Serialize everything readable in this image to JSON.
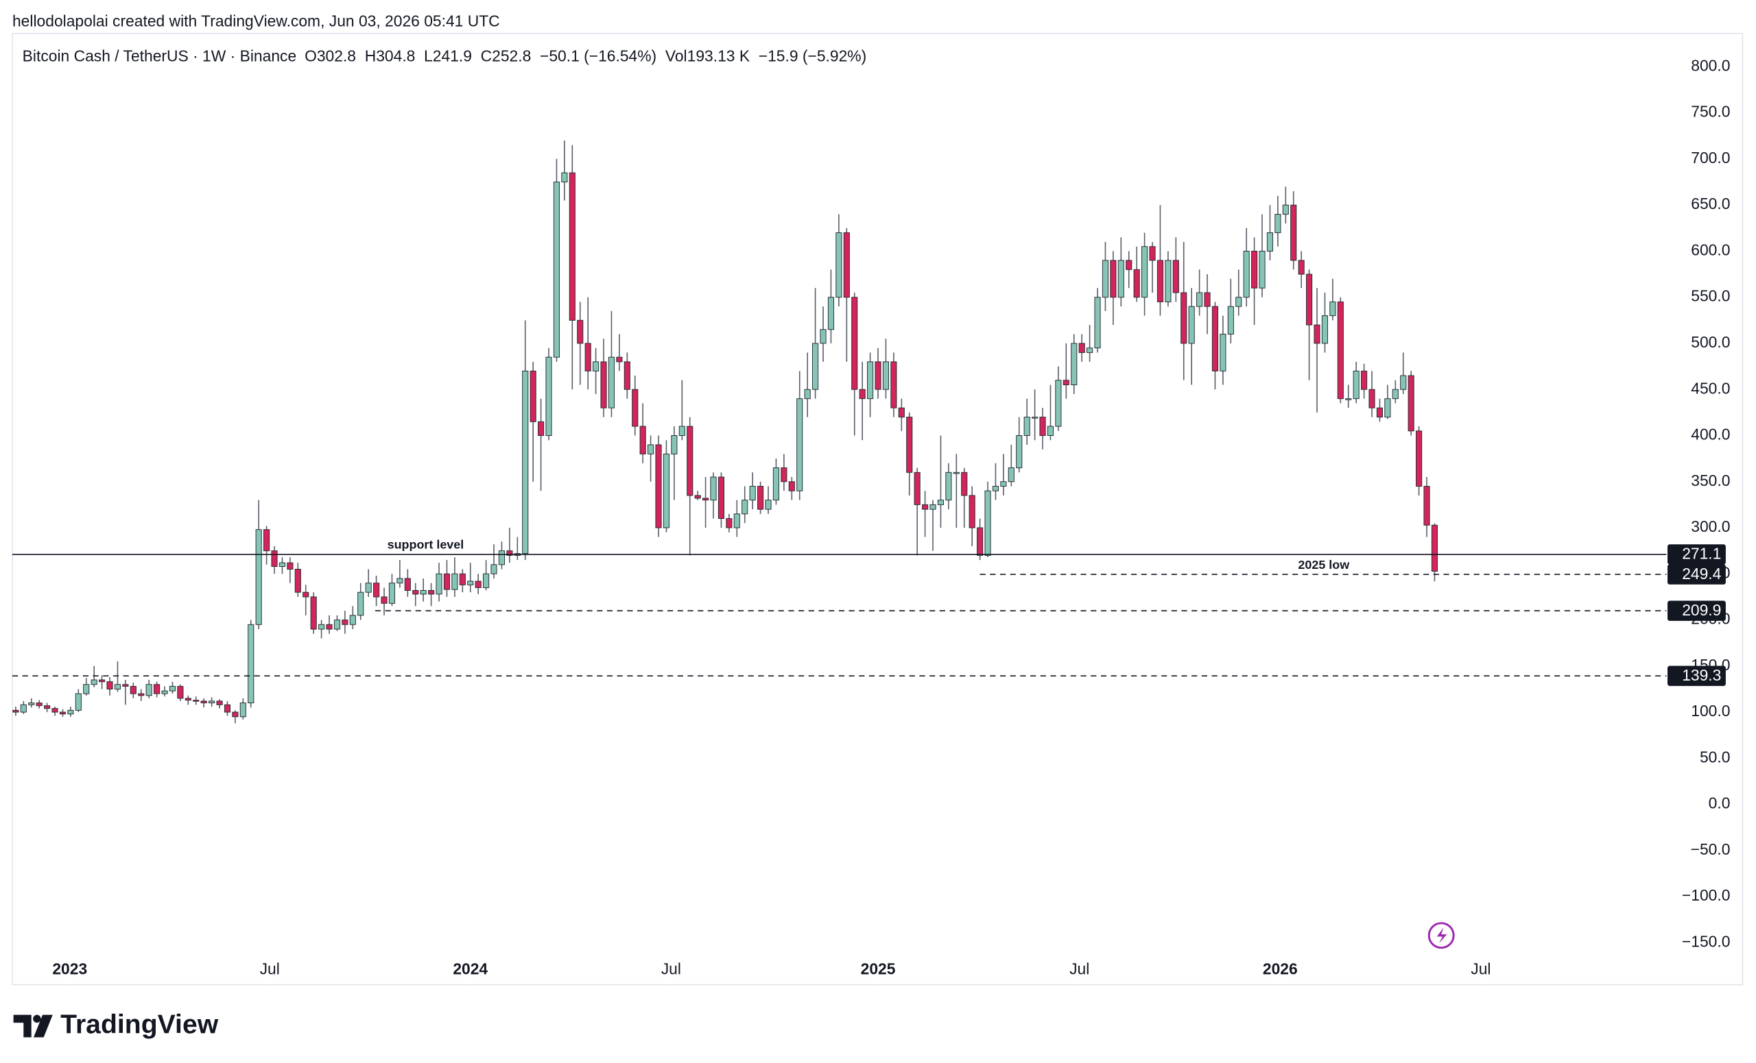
{
  "header": {
    "credit": "hellodolapolai created with TradingView.com, Jun 03, 2026 05:41 UTC"
  },
  "footer": {
    "brand": "TradingView"
  },
  "chart_data": {
    "type": "candlestick",
    "title": "Bitcoin Cash / TetherUS · 1W · Binance",
    "subtitle": "O302.8  H304.8  L241.9  C252.8  −50.1 (−16.54%)  Vol193.13 K  −15.9 (−5.92%)",
    "up_color": "#86c5b5",
    "down_color": "#d2255a",
    "xlim": [
      -0.43,
      210.14
    ],
    "xticks": [
      {
        "value": 6.9,
        "label": "2023"
      },
      {
        "value": 32.4,
        "label": "Jul"
      },
      {
        "value": 58,
        "label": "2024"
      },
      {
        "value": 83.6,
        "label": "Jul"
      },
      {
        "value": 110,
        "label": "2025"
      },
      {
        "value": 135.7,
        "label": "Jul"
      },
      {
        "value": 161.3,
        "label": "2026"
      },
      {
        "value": 186.9,
        "label": "Jul"
      }
    ],
    "ylim": [
      -195.6,
      836
    ],
    "yticks": [
      {
        "value": 800,
        "label": "800.0"
      },
      {
        "value": 750,
        "label": "750.0"
      },
      {
        "value": 700,
        "label": "700.0"
      },
      {
        "value": 650,
        "label": "650.0"
      },
      {
        "value": 600,
        "label": "600.0"
      },
      {
        "value": 550,
        "label": "550.0"
      },
      {
        "value": 500,
        "label": "500.0"
      },
      {
        "value": 450,
        "label": "450.0"
      },
      {
        "value": 400,
        "label": "400.0"
      },
      {
        "value": 350,
        "label": "350.0"
      },
      {
        "value": 300,
        "label": "300.0"
      },
      {
        "value": 250,
        "label": "250.0"
      },
      {
        "value": 200,
        "label": "200.0"
      },
      {
        "value": 150,
        "label": "150.0"
      },
      {
        "value": 100,
        "label": "100.0"
      },
      {
        "value": 50,
        "label": "50.0"
      },
      {
        "value": 0,
        "label": "0.0"
      },
      {
        "value": -50,
        "label": "−50.0"
      },
      {
        "value": -100,
        "label": "−100.0"
      },
      {
        "value": -150,
        "label": "−150.0"
      }
    ],
    "levels": [
      {
        "value": 271.1,
        "style": "solid"
      },
      {
        "value": 249.4,
        "style": "dashed"
      },
      {
        "value": 209.9,
        "style": "dashed"
      },
      {
        "value": 139.3,
        "style": "dashed"
      }
    ],
    "annotations": [
      "support level",
      "2025 low"
    ],
    "open": [
      102,
      100,
      108,
      110,
      107,
      104,
      100,
      98,
      102,
      120,
      130,
      135,
      133,
      125,
      130,
      128,
      120,
      118,
      130,
      120,
      123,
      128,
      115,
      113,
      112,
      110,
      112,
      108,
      100,
      95,
      110,
      195,
      298,
      275,
      258,
      262,
      255,
      230,
      225,
      190,
      195,
      190,
      200,
      195,
      205,
      230,
      240,
      225,
      218,
      240,
      245,
      232,
      228,
      232,
      228,
      250,
      233,
      250,
      238,
      242,
      235,
      250,
      260,
      275,
      270,
      272,
      470,
      415,
      400,
      485,
      675,
      685,
      525,
      500,
      470,
      480,
      430,
      485,
      480,
      450,
      410,
      380,
      390,
      300,
      380,
      400,
      410,
      335,
      332,
      330,
      355,
      310,
      300,
      315,
      330,
      345,
      320,
      330,
      365,
      350,
      340,
      440,
      450,
      500,
      515,
      550,
      620,
      550,
      450,
      440,
      480,
      450,
      480,
      430,
      420,
      360,
      325,
      320,
      325,
      330,
      360,
      360,
      335,
      300,
      270,
      340,
      345,
      350,
      365,
      400,
      420,
      420,
      400,
      410,
      460,
      455,
      500,
      490,
      495,
      550,
      590,
      550,
      590,
      580,
      550,
      605,
      590,
      545,
      590,
      555,
      500,
      540,
      555,
      540,
      470,
      510,
      540,
      550,
      600,
      560,
      600,
      620,
      640,
      650,
      590,
      575,
      520,
      500,
      530,
      545,
      440,
      440,
      470,
      450,
      430,
      420,
      440,
      450,
      465,
      405,
      345,
      302.8
    ],
    "high": [
      106,
      112,
      115,
      113,
      110,
      106,
      103,
      106,
      125,
      137,
      150,
      140,
      138,
      155,
      135,
      132,
      125,
      135,
      133,
      128,
      133,
      130,
      118,
      117,
      115,
      116,
      114,
      112,
      102,
      115,
      200,
      330,
      302,
      280,
      268,
      268,
      262,
      238,
      230,
      200,
      205,
      205,
      210,
      215,
      240,
      255,
      248,
      235,
      250,
      265,
      255,
      240,
      245,
      240,
      262,
      265,
      268,
      255,
      262,
      250,
      265,
      282,
      285,
      300,
      290,
      525,
      480,
      440,
      495,
      700,
      720,
      715,
      545,
      550,
      495,
      505,
      535,
      510,
      490,
      465,
      435,
      400,
      400,
      395,
      410,
      460,
      420,
      340,
      355,
      360,
      360,
      315,
      330,
      345,
      360,
      350,
      345,
      375,
      380,
      355,
      470,
      490,
      560,
      540,
      580,
      640,
      625,
      555,
      480,
      490,
      495,
      505,
      490,
      440,
      425,
      365,
      340,
      330,
      400,
      370,
      380,
      365,
      345,
      310,
      350,
      370,
      380,
      390,
      420,
      440,
      450,
      430,
      455,
      475,
      500,
      510,
      510,
      520,
      560,
      610,
      600,
      615,
      600,
      605,
      620,
      610,
      650,
      600,
      615,
      610,
      560,
      580,
      575,
      545,
      530,
      570,
      580,
      625,
      615,
      640,
      650,
      660,
      670,
      665,
      600,
      580,
      560,
      555,
      570,
      550,
      455,
      480,
      478,
      470,
      440,
      455,
      460,
      490,
      470,
      410,
      355,
      304.8
    ],
    "low": [
      96,
      98,
      105,
      104,
      100,
      96,
      95,
      95,
      100,
      118,
      127,
      125,
      118,
      122,
      108,
      115,
      112,
      115,
      116,
      117,
      120,
      112,
      108,
      108,
      105,
      106,
      104,
      96,
      88,
      92,
      105,
      190,
      260,
      250,
      250,
      240,
      225,
      205,
      185,
      180,
      185,
      188,
      185,
      190,
      200,
      225,
      215,
      205,
      215,
      235,
      225,
      215,
      220,
      215,
      220,
      225,
      225,
      230,
      230,
      228,
      232,
      245,
      255,
      262,
      265,
      265,
      350,
      340,
      395,
      480,
      655,
      450,
      455,
      450,
      445,
      420,
      420,
      470,
      440,
      400,
      370,
      350,
      290,
      295,
      330,
      395,
      270,
      330,
      300,
      310,
      300,
      295,
      290,
      305,
      320,
      315,
      315,
      325,
      340,
      330,
      330,
      420,
      440,
      480,
      500,
      540,
      480,
      400,
      395,
      420,
      440,
      440,
      420,
      405,
      335,
      270,
      290,
      275,
      300,
      320,
      300,
      300,
      280,
      265,
      268,
      330,
      335,
      345,
      360,
      390,
      395,
      385,
      395,
      405,
      440,
      445,
      480,
      480,
      490,
      535,
      520,
      540,
      560,
      545,
      530,
      555,
      530,
      540,
      545,
      460,
      455,
      530,
      510,
      450,
      455,
      500,
      530,
      540,
      520,
      550,
      590,
      605,
      630,
      580,
      560,
      460,
      425,
      490,
      525,
      435,
      430,
      435,
      440,
      420,
      415,
      418,
      435,
      445,
      400,
      335,
      290,
      241.9
    ],
    "close": [
      100,
      108,
      110,
      107,
      104,
      100,
      98,
      102,
      120,
      130,
      135,
      133,
      125,
      130,
      128,
      120,
      118,
      130,
      120,
      123,
      128,
      115,
      113,
      112,
      110,
      112,
      108,
      100,
      95,
      110,
      195,
      298,
      275,
      258,
      262,
      255,
      230,
      225,
      190,
      195,
      190,
      200,
      195,
      205,
      230,
      240,
      225,
      218,
      240,
      245,
      232,
      228,
      232,
      228,
      250,
      233,
      250,
      238,
      242,
      235,
      250,
      260,
      275,
      270,
      272,
      470,
      415,
      400,
      485,
      675,
      685,
      525,
      500,
      470,
      480,
      430,
      485,
      480,
      450,
      410,
      380,
      390,
      300,
      380,
      400,
      410,
      335,
      332,
      330,
      355,
      310,
      300,
      315,
      330,
      345,
      320,
      330,
      365,
      350,
      340,
      440,
      450,
      500,
      515,
      550,
      620,
      550,
      450,
      440,
      480,
      450,
      480,
      430,
      420,
      360,
      325,
      320,
      325,
      330,
      360,
      360,
      335,
      300,
      270,
      340,
      345,
      350,
      365,
      400,
      420,
      420,
      400,
      410,
      460,
      455,
      500,
      490,
      495,
      550,
      590,
      550,
      590,
      580,
      550,
      605,
      590,
      545,
      590,
      555,
      500,
      540,
      555,
      540,
      470,
      510,
      540,
      550,
      600,
      560,
      600,
      620,
      640,
      650,
      590,
      575,
      520,
      500,
      530,
      545,
      440,
      440,
      470,
      450,
      430,
      420,
      440,
      450,
      465,
      405,
      345,
      302.8,
      252.8
    ]
  }
}
